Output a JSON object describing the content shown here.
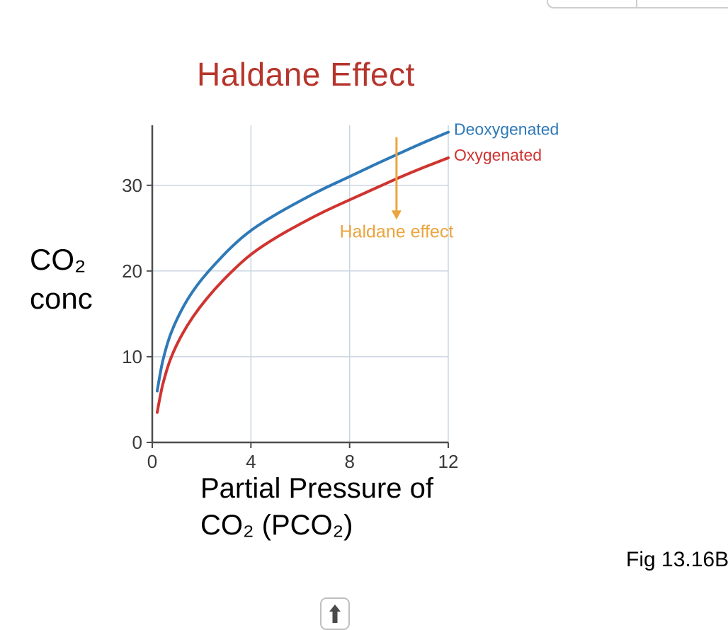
{
  "page": {
    "background": "#ffffff",
    "fig_caption": "Fig 13.16B"
  },
  "chart_data": {
    "type": "line",
    "title": "Haldane Effect",
    "title_color": "#b6352c",
    "xlabel": "Partial Pressure of CO₂ (PCO₂)",
    "ylabel": "CO₂ conc",
    "xlim": [
      0,
      12
    ],
    "ylim": [
      0,
      37
    ],
    "xticks": [
      0,
      4,
      8,
      12
    ],
    "yticks": [
      0,
      10,
      20,
      30
    ],
    "grid": true,
    "legend_position": "right-of-curve-ends",
    "series": [
      {
        "name": "Deoxygenated",
        "color": "#2e79b8",
        "x": [
          0.2,
          0.35,
          0.5,
          0.7,
          1.0,
          1.4,
          1.9,
          2.5,
          3.2,
          4.0,
          5.0,
          6.0,
          7.0,
          8.0,
          9.0,
          10.0,
          11.0,
          12.0
        ],
        "y": [
          6.0,
          8.6,
          10.4,
          12.4,
          14.4,
          16.6,
          18.7,
          20.7,
          22.8,
          24.8,
          26.6,
          28.2,
          29.7,
          31.0,
          32.4,
          33.7,
          35.0,
          36.2
        ]
      },
      {
        "name": "Oxygenated",
        "color": "#cf3430",
        "x": [
          0.2,
          0.35,
          0.5,
          0.7,
          1.0,
          1.4,
          1.9,
          2.5,
          3.2,
          4.0,
          5.0,
          6.0,
          7.0,
          8.0,
          9.0,
          10.0,
          11.0,
          12.0
        ],
        "y": [
          3.5,
          5.9,
          7.6,
          9.5,
          11.5,
          13.6,
          15.7,
          17.8,
          19.9,
          22.0,
          23.9,
          25.5,
          27.0,
          28.3,
          29.6,
          30.9,
          32.1,
          33.2
        ]
      }
    ],
    "annotation": {
      "label": "Haldane effect",
      "color": "#eba53f",
      "x": 9.9,
      "y_start": 35.6,
      "y_end": 26.0,
      "label_y": 23.9
    }
  },
  "icons": {
    "scroll_up_arrow": "up-arrow"
  }
}
